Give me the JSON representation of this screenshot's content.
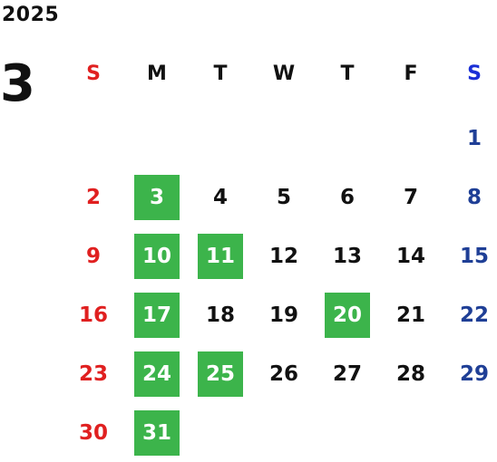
{
  "year": "2025",
  "month": "3",
  "colors": {
    "sunday": "#e02020",
    "saturday_header": "#1a2fd6",
    "saturday": "#1f3f96",
    "weekday": "#111111",
    "highlight_bg": "#3cb44b",
    "highlight_text": "#ffffff"
  },
  "weekday_headers": [
    "S",
    "M",
    "T",
    "W",
    "T",
    "F",
    "S"
  ],
  "first_weekday_index": 6,
  "days_in_month": 31,
  "highlighted_days": [
    3,
    10,
    11,
    17,
    20,
    24,
    25,
    31
  ]
}
